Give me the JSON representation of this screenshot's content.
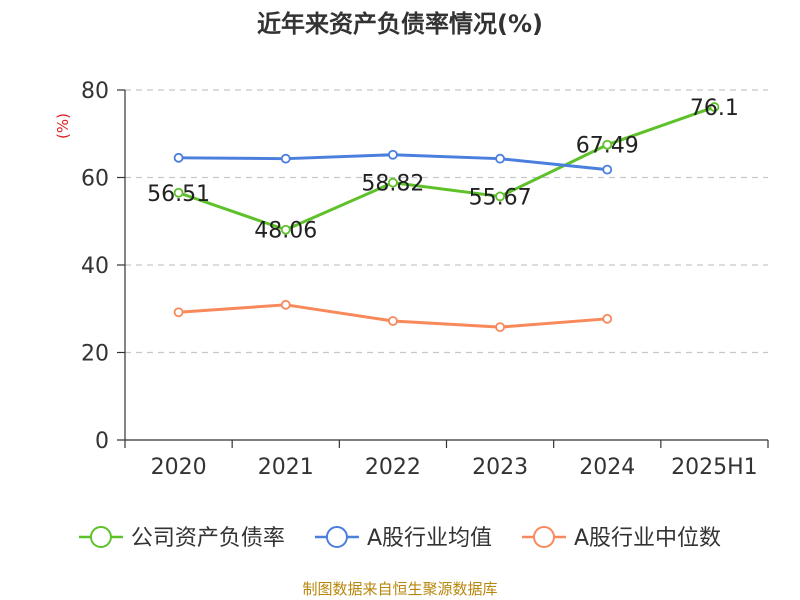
{
  "chart_data": {
    "type": "line",
    "title": "近年来资产负债率情况(%)",
    "y_unit_label": "(%)",
    "categories": [
      "2020",
      "2021",
      "2022",
      "2023",
      "2024",
      "2025H1"
    ],
    "ylim": [
      0,
      80
    ],
    "yticks": [
      0,
      20,
      40,
      60,
      80
    ],
    "grid": true,
    "legend_position": "bottom",
    "series": [
      {
        "name": "公司资产负债率",
        "color": "#5ec12a",
        "values": [
          56.51,
          48.06,
          58.82,
          55.67,
          67.49,
          76.1
        ],
        "labels": [
          "56.51",
          "48.06",
          "58.82",
          "55.67",
          "67.49",
          "76.1"
        ]
      },
      {
        "name": "A股行业均值",
        "color": "#4a7fde",
        "values": [
          64.5,
          64.3,
          65.2,
          64.3,
          61.8,
          null
        ],
        "labels": null
      },
      {
        "name": "A股行业中位数",
        "color": "#f7895a",
        "values": [
          29.2,
          30.9,
          27.2,
          25.8,
          27.7,
          null
        ],
        "labels": null
      }
    ]
  },
  "unit_color": "#e02020",
  "source": {
    "text": "制图数据来自恒生聚源数据库",
    "color": "#b8860b"
  }
}
